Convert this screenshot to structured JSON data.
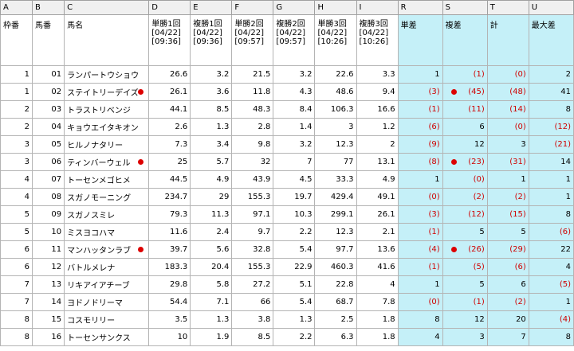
{
  "col_letters": [
    "A",
    "B",
    "C",
    "D",
    "E",
    "F",
    "G",
    "H",
    "I",
    "R",
    "S",
    "T",
    "U"
  ],
  "headers": {
    "waku": "枠番",
    "umaban": "馬番",
    "name": "馬名",
    "d": [
      "単勝1回",
      "[04/22]",
      "[09:36]"
    ],
    "e": [
      "複勝1回",
      "[04/22]",
      "[09:36]"
    ],
    "f": [
      "単勝2回",
      "[04/22]",
      "[09:57]"
    ],
    "g": [
      "複勝2回",
      "[04/22]",
      "[09:57]"
    ],
    "h": [
      "単勝3回",
      "[04/22]",
      "[10:26]"
    ],
    "i": [
      "複勝3回",
      "[04/22]",
      "[10:26]"
    ],
    "r": "単差",
    "s": "複差",
    "t": "計",
    "u": "最大差"
  },
  "rows": [
    {
      "waku": "1",
      "umaban": "01",
      "name": "ランパートウショウ",
      "mark": false,
      "d": "26.6",
      "e": "3.2",
      "f": "21.5",
      "g": "3.2",
      "h": "22.6",
      "i": "3.3",
      "r": "1",
      "s": "(1)",
      "t": "(0)",
      "u": "2"
    },
    {
      "waku": "1",
      "umaban": "02",
      "name": "ステイトリーデイズ",
      "mark": true,
      "d": "26.1",
      "e": "3.6",
      "f": "11.8",
      "g": "4.3",
      "h": "48.6",
      "i": "9.4",
      "r": "(3)",
      "s": "(45)",
      "t": "(48)",
      "u": "41"
    },
    {
      "waku": "2",
      "umaban": "03",
      "name": "トラストリベンジ",
      "mark": false,
      "d": "44.1",
      "e": "8.5",
      "f": "48.3",
      "g": "8.4",
      "h": "106.3",
      "i": "16.6",
      "r": "(1)",
      "s": "(11)",
      "t": "(14)",
      "u": "8"
    },
    {
      "waku": "2",
      "umaban": "04",
      "name": "キョウエイタキオン",
      "mark": false,
      "d": "2.6",
      "e": "1.3",
      "f": "2.8",
      "g": "1.4",
      "h": "3",
      "i": "1.2",
      "r": "(6)",
      "s": "6",
      "t": "(0)",
      "u": "(12)"
    },
    {
      "waku": "3",
      "umaban": "05",
      "name": "ヒルノナタリー",
      "mark": false,
      "d": "7.3",
      "e": "3.4",
      "f": "9.8",
      "g": "3.2",
      "h": "12.3",
      "i": "2",
      "r": "(9)",
      "s": "12",
      "t": "3",
      "u": "(21)"
    },
    {
      "waku": "3",
      "umaban": "06",
      "name": "ティンバーウェル",
      "mark": true,
      "d": "25",
      "e": "5.7",
      "f": "32",
      "g": "7",
      "h": "77",
      "i": "13.1",
      "r": "(8)",
      "s": "(23)",
      "t": "(31)",
      "u": "14"
    },
    {
      "waku": "4",
      "umaban": "07",
      "name": "トーセンメゴヒメ",
      "mark": false,
      "d": "44.5",
      "e": "4.9",
      "f": "43.9",
      "g": "4.5",
      "h": "33.3",
      "i": "4.9",
      "r": "1",
      "s": "(0)",
      "t": "1",
      "u": "1"
    },
    {
      "waku": "4",
      "umaban": "08",
      "name": "スガノモーニング",
      "mark": false,
      "d": "234.7",
      "e": "29",
      "f": "155.3",
      "g": "19.7",
      "h": "429.4",
      "i": "49.1",
      "r": "(0)",
      "s": "(2)",
      "t": "(2)",
      "u": "1"
    },
    {
      "waku": "5",
      "umaban": "09",
      "name": "スガノスミレ",
      "mark": false,
      "d": "79.3",
      "e": "11.3",
      "f": "97.1",
      "g": "10.3",
      "h": "299.1",
      "i": "26.1",
      "r": "(3)",
      "s": "(12)",
      "t": "(15)",
      "u": "8"
    },
    {
      "waku": "5",
      "umaban": "10",
      "name": "ミスヨコハマ",
      "mark": false,
      "d": "11.6",
      "e": "2.4",
      "f": "9.7",
      "g": "2.2",
      "h": "12.3",
      "i": "2.1",
      "r": "(1)",
      "s": "5",
      "t": "5",
      "u": "(6)"
    },
    {
      "waku": "6",
      "umaban": "11",
      "name": "マンハッタンラブ",
      "mark": true,
      "d": "39.7",
      "e": "5.6",
      "f": "32.8",
      "g": "5.4",
      "h": "97.7",
      "i": "13.6",
      "r": "(4)",
      "s": "(26)",
      "t": "(29)",
      "u": "22"
    },
    {
      "waku": "6",
      "umaban": "12",
      "name": "バトルメレナ",
      "mark": false,
      "d": "183.3",
      "e": "20.4",
      "f": "155.3",
      "g": "22.9",
      "h": "460.3",
      "i": "41.6",
      "r": "(1)",
      "s": "(5)",
      "t": "(6)",
      "u": "4"
    },
    {
      "waku": "7",
      "umaban": "13",
      "name": "リキアイアチーブ",
      "mark": false,
      "d": "29.8",
      "e": "5.8",
      "f": "27.2",
      "g": "5.1",
      "h": "22.8",
      "i": "4",
      "r": "1",
      "s": "5",
      "t": "6",
      "u": "(5)"
    },
    {
      "waku": "7",
      "umaban": "14",
      "name": "ヨドノドリーマ",
      "mark": false,
      "d": "54.4",
      "e": "7.1",
      "f": "66",
      "g": "5.4",
      "h": "68.7",
      "i": "7.8",
      "r": "(0)",
      "s": "(1)",
      "t": "(2)",
      "u": "1"
    },
    {
      "waku": "8",
      "umaban": "15",
      "name": "コスモリリー",
      "mark": false,
      "d": "3.5",
      "e": "1.3",
      "f": "3.8",
      "g": "1.3",
      "h": "2.5",
      "i": "1.8",
      "r": "8",
      "s": "12",
      "t": "20",
      "u": "(4)"
    },
    {
      "waku": "8",
      "umaban": "16",
      "name": "トーセンサンクス",
      "mark": false,
      "d": "10",
      "e": "1.9",
      "f": "8.5",
      "g": "2.2",
      "h": "6.3",
      "i": "1.8",
      "r": "4",
      "s": "3",
      "t": "7",
      "u": "8"
    }
  ],
  "colors": {
    "highlight_bg": "#c5f0f8",
    "negative_text": "#d00000",
    "mark_dot": "#dd0000",
    "grid": "#b4b4b4"
  }
}
